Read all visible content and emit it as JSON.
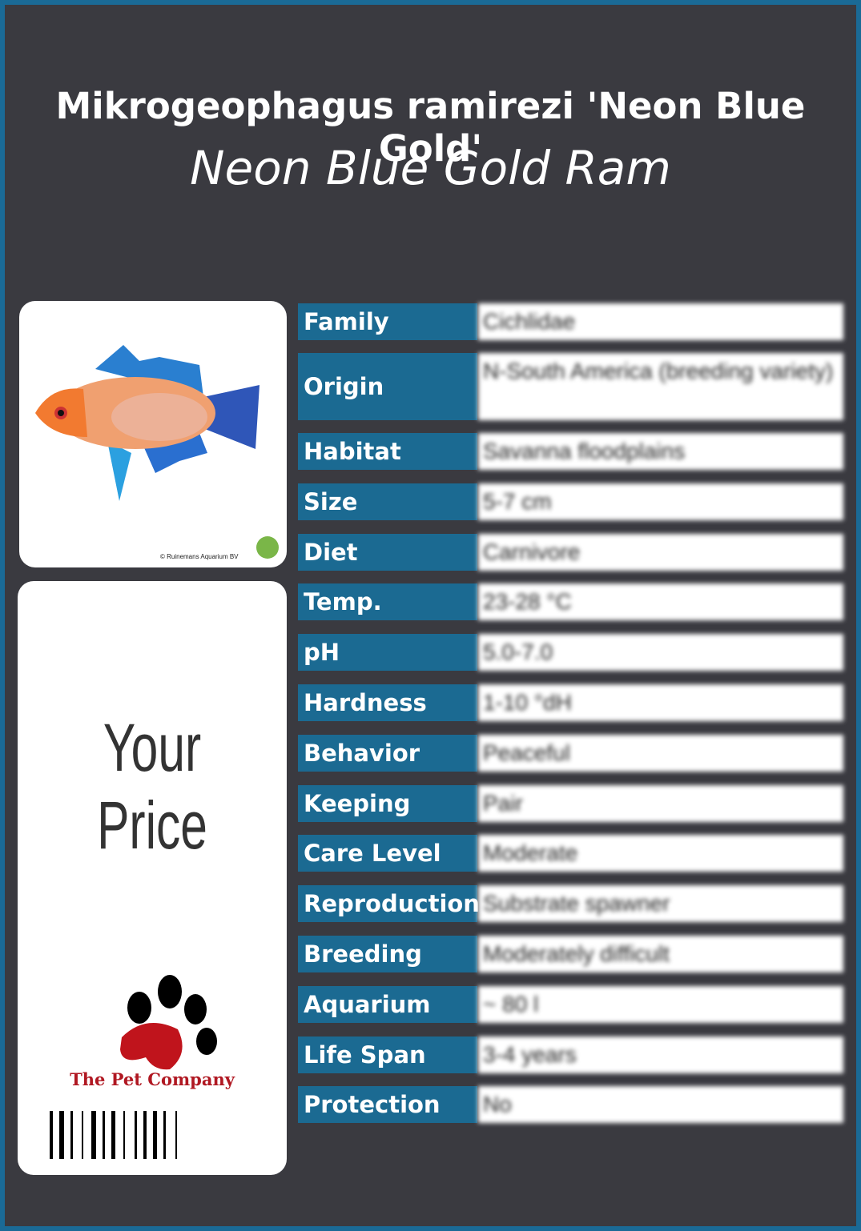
{
  "header": {
    "title": "Mikrogeophagus ramirezi 'Neon Blue Gold'",
    "subtitle": "Neon Blue Gold Ram"
  },
  "image": {
    "credit": "© Ruinemans Aquarium BV"
  },
  "price": {
    "label": "Your Price"
  },
  "brand": {
    "name": "The Pet Company"
  },
  "table": {
    "rows": [
      [
        "Family",
        "Cichlidae"
      ],
      [
        "Origin",
        "N-South America (breeding variety)"
      ],
      [
        "Habitat",
        "Savanna floodplains"
      ],
      [
        "Size",
        "5-7 cm"
      ],
      [
        "Diet",
        "Carnivore"
      ],
      [
        "Temp.",
        "23-28 °C"
      ],
      [
        "pH",
        "5.0-7.0"
      ],
      [
        "Hardness",
        "1-10 °dH"
      ],
      [
        "Behavior",
        "Peaceful"
      ],
      [
        "Keeping",
        "Pair"
      ],
      [
        "Care Level",
        "Moderate"
      ],
      [
        "Reproduction",
        "Substrate spawner"
      ],
      [
        "Breeding",
        "Moderately difficult"
      ],
      [
        "Aquarium",
        "~ 80 l"
      ],
      [
        "Life Span",
        "3-4 years"
      ],
      [
        "Protection",
        "No"
      ]
    ]
  }
}
